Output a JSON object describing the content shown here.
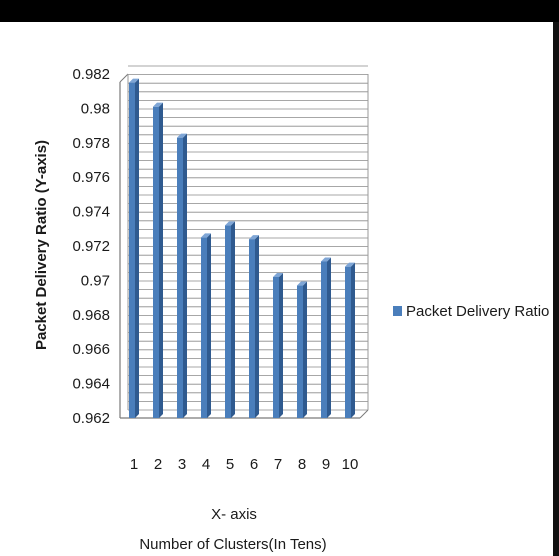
{
  "chart_data": {
    "type": "bar",
    "categories": [
      "1",
      "2",
      "3",
      "4",
      "5",
      "6",
      "7",
      "8",
      "9",
      "10"
    ],
    "series": [
      {
        "name": "Packet Delivery Ratio",
        "values": [
          0.9815,
          0.9801,
          0.9783,
          0.9725,
          0.9732,
          0.9724,
          0.9702,
          0.9697,
          0.9711,
          0.9708
        ],
        "color": "#4a7ebb"
      }
    ],
    "ylim": [
      0.962,
      0.982
    ],
    "yticks": [
      "0.962",
      "0.964",
      "0.966",
      "0.968",
      "0.97",
      "0.972",
      "0.974",
      "0.976",
      "0.978",
      "0.98",
      "0.982"
    ],
    "ylabel": "Packet Delivery Ratio (Y-axis)",
    "xlabel": "X- axis",
    "xlabel_sub": "Number of Clusters(In Tens)",
    "legend_position": "right",
    "grid": true
  }
}
